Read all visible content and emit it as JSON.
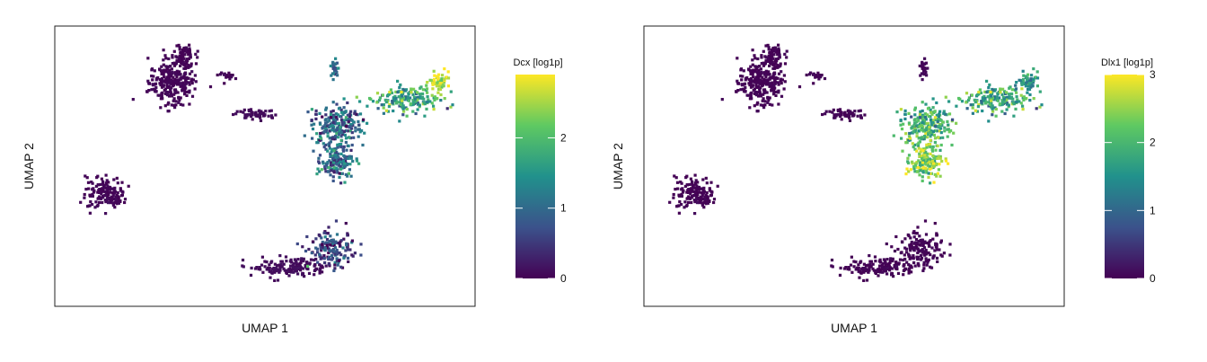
{
  "chart_data": [
    {
      "type": "scatter",
      "title": "",
      "xlabel": "UMAP 1",
      "ylabel": "UMAP 2",
      "colorbar": {
        "title": "Dcx [log1p]",
        "range": [
          0,
          2.9
        ],
        "ticks": [
          0,
          1,
          2
        ],
        "colormap": "viridis"
      },
      "clusters": [
        {
          "name": "upper-left",
          "x": 4.5,
          "y": 8.2,
          "spread": [
            0.9,
            0.8
          ],
          "n": 260,
          "value": 0.04
        },
        {
          "name": "upper-left-top",
          "x": 4.9,
          "y": 9.3,
          "spread": [
            0.5,
            0.4
          ],
          "n": 80,
          "value": 0.03
        },
        {
          "name": "small-mid",
          "x": 6.8,
          "y": 8.5,
          "spread": [
            0.3,
            0.15
          ],
          "n": 20,
          "value": 0.02
        },
        {
          "name": "bridge",
          "x": 8.0,
          "y": 6.9,
          "spread": [
            0.8,
            0.2
          ],
          "n": 60,
          "value": 0.08
        },
        {
          "name": "center-right",
          "x": 11.5,
          "y": 6.5,
          "spread": [
            1.0,
            0.7
          ],
          "n": 220,
          "value": 0.9
        },
        {
          "name": "right-arm",
          "x": 14.5,
          "y": 7.5,
          "spread": [
            1.3,
            0.5
          ],
          "n": 180,
          "value": 1.7
        },
        {
          "name": "right-tip",
          "x": 15.9,
          "y": 8.2,
          "spread": [
            0.4,
            0.35
          ],
          "n": 60,
          "value": 2.5
        },
        {
          "name": "lower-center",
          "x": 11.5,
          "y": 5.0,
          "spread": [
            0.6,
            0.6
          ],
          "n": 170,
          "value": 0.9
        },
        {
          "name": "top-mid",
          "x": 11.4,
          "y": 8.8,
          "spread": [
            0.15,
            0.4
          ],
          "n": 25,
          "value": 1.0
        },
        {
          "name": "left-island",
          "x": 1.7,
          "y": 3.7,
          "spread": [
            0.8,
            0.6
          ],
          "n": 150,
          "value": 0.05
        },
        {
          "name": "bottom-band",
          "x": 9.5,
          "y": 0.7,
          "spread": [
            1.5,
            0.35
          ],
          "n": 150,
          "value": 0.1
        },
        {
          "name": "bottom-band-right",
          "x": 11.3,
          "y": 1.4,
          "spread": [
            0.9,
            0.6
          ],
          "n": 150,
          "value": 0.5
        }
      ]
    },
    {
      "type": "scatter",
      "title": "",
      "xlabel": "UMAP 1",
      "ylabel": "UMAP 2",
      "colorbar": {
        "title": "Dlx1 [log1p]",
        "range": [
          0,
          3.0
        ],
        "ticks": [
          0,
          1,
          2,
          3
        ],
        "colormap": "viridis"
      },
      "clusters": [
        {
          "name": "upper-left",
          "x": 4.5,
          "y": 8.2,
          "spread": [
            0.9,
            0.8
          ],
          "n": 260,
          "value": 0.02
        },
        {
          "name": "upper-left-top",
          "x": 4.9,
          "y": 9.3,
          "spread": [
            0.5,
            0.4
          ],
          "n": 80,
          "value": 0.02
        },
        {
          "name": "small-mid",
          "x": 6.8,
          "y": 8.5,
          "spread": [
            0.3,
            0.15
          ],
          "n": 20,
          "value": 0.02
        },
        {
          "name": "bridge",
          "x": 8.0,
          "y": 6.9,
          "spread": [
            0.8,
            0.2
          ],
          "n": 60,
          "value": 0.03
        },
        {
          "name": "center-right",
          "x": 11.5,
          "y": 6.5,
          "spread": [
            1.0,
            0.7
          ],
          "n": 220,
          "value": 1.9
        },
        {
          "name": "right-arm",
          "x": 14.5,
          "y": 7.5,
          "spread": [
            1.3,
            0.5
          ],
          "n": 180,
          "value": 1.8
        },
        {
          "name": "right-tip",
          "x": 15.9,
          "y": 8.2,
          "spread": [
            0.4,
            0.35
          ],
          "n": 60,
          "value": 1.4
        },
        {
          "name": "lower-center",
          "x": 11.5,
          "y": 5.0,
          "spread": [
            0.6,
            0.6
          ],
          "n": 170,
          "value": 2.3
        },
        {
          "name": "top-mid",
          "x": 11.4,
          "y": 8.8,
          "spread": [
            0.15,
            0.4
          ],
          "n": 25,
          "value": 0.05
        },
        {
          "name": "left-island",
          "x": 1.7,
          "y": 3.7,
          "spread": [
            0.8,
            0.6
          ],
          "n": 150,
          "value": 0.02
        },
        {
          "name": "bottom-band",
          "x": 9.5,
          "y": 0.7,
          "spread": [
            1.5,
            0.35
          ],
          "n": 150,
          "value": 0.02
        },
        {
          "name": "bottom-band-right",
          "x": 11.3,
          "y": 1.4,
          "spread": [
            0.9,
            0.6
          ],
          "n": 150,
          "value": 0.03
        }
      ]
    }
  ],
  "data_range": {
    "x": [
      0,
      17
    ],
    "y": [
      -0.5,
      10
    ]
  },
  "colormap_stops": [
    "#440154",
    "#3b528b",
    "#21918c",
    "#5ec962",
    "#fde725"
  ]
}
